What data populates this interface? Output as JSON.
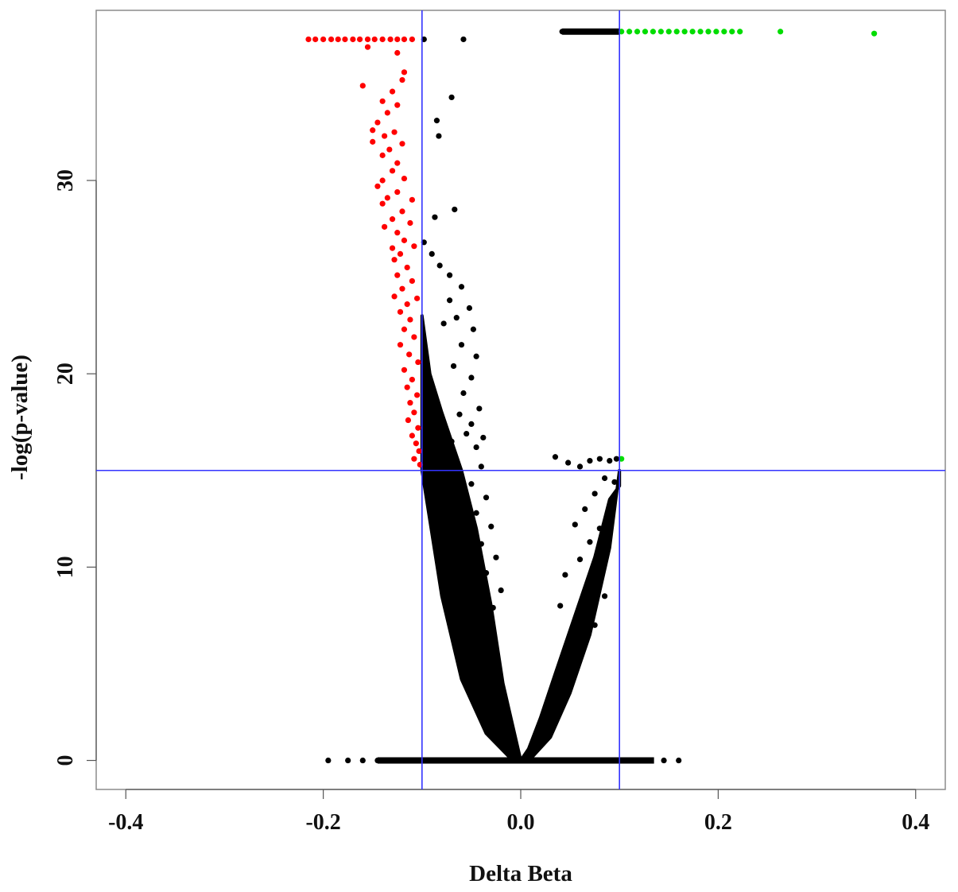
{
  "chart_data": {
    "type": "scatter",
    "title": "",
    "xlabel": "Delta Beta",
    "ylabel": "-log(p-value)",
    "xlim": [
      -0.43,
      0.43
    ],
    "ylim": [
      -1.5,
      38.8
    ],
    "x_ticks": [
      {
        "value": -0.4,
        "label": "-0.4"
      },
      {
        "value": -0.2,
        "label": "-0.2"
      },
      {
        "value": 0.0,
        "label": "0.0"
      },
      {
        "value": 0.2,
        "label": "0.2"
      },
      {
        "value": 0.4,
        "label": "0.4"
      }
    ],
    "y_ticks": [
      {
        "value": 0,
        "label": "0"
      },
      {
        "value": 10,
        "label": "10"
      },
      {
        "value": 20,
        "label": "20"
      },
      {
        "value": 30,
        "label": "30"
      }
    ],
    "grid": false,
    "legend": "none",
    "threshold_lines": {
      "vertical": [
        -0.1,
        0.1
      ],
      "horizontal": [
        15.0
      ],
      "color": "#3333ff"
    },
    "series": [
      {
        "color": "#ff0000",
        "points": [
          [
            -0.215,
            37.3
          ],
          [
            -0.208,
            37.3
          ],
          [
            -0.2,
            37.3
          ],
          [
            -0.192,
            37.3
          ],
          [
            -0.185,
            37.3
          ],
          [
            -0.178,
            37.3
          ],
          [
            -0.17,
            37.3
          ],
          [
            -0.163,
            37.3
          ],
          [
            -0.155,
            37.3
          ],
          [
            -0.148,
            37.3
          ],
          [
            -0.14,
            37.3
          ],
          [
            -0.132,
            37.3
          ],
          [
            -0.125,
            37.3
          ],
          [
            -0.118,
            37.3
          ],
          [
            -0.11,
            37.3
          ],
          [
            -0.155,
            36.9
          ],
          [
            -0.125,
            36.6
          ],
          [
            -0.118,
            35.6
          ],
          [
            -0.12,
            35.2
          ],
          [
            -0.16,
            34.9
          ],
          [
            -0.13,
            34.6
          ],
          [
            -0.14,
            34.1
          ],
          [
            -0.125,
            33.9
          ],
          [
            -0.135,
            33.5
          ],
          [
            -0.145,
            33.0
          ],
          [
            -0.15,
            32.6
          ],
          [
            -0.138,
            32.3
          ],
          [
            -0.15,
            32.0
          ],
          [
            -0.128,
            32.5
          ],
          [
            -0.133,
            31.6
          ],
          [
            -0.14,
            31.3
          ],
          [
            -0.12,
            31.9
          ],
          [
            -0.125,
            30.9
          ],
          [
            -0.13,
            30.5
          ],
          [
            -0.14,
            30.0
          ],
          [
            -0.145,
            29.7
          ],
          [
            -0.118,
            30.1
          ],
          [
            -0.125,
            29.4
          ],
          [
            -0.135,
            29.1
          ],
          [
            -0.14,
            28.8
          ],
          [
            -0.11,
            29.0
          ],
          [
            -0.12,
            28.4
          ],
          [
            -0.13,
            28.0
          ],
          [
            -0.138,
            27.6
          ],
          [
            -0.112,
            27.8
          ],
          [
            -0.125,
            27.3
          ],
          [
            -0.118,
            26.9
          ],
          [
            -0.13,
            26.5
          ],
          [
            -0.122,
            26.2
          ],
          [
            -0.108,
            26.6
          ],
          [
            -0.128,
            25.9
          ],
          [
            -0.115,
            25.5
          ],
          [
            -0.125,
            25.1
          ],
          [
            -0.11,
            24.8
          ],
          [
            -0.12,
            24.4
          ],
          [
            -0.128,
            24.0
          ],
          [
            -0.115,
            23.6
          ],
          [
            -0.105,
            23.9
          ],
          [
            -0.122,
            23.2
          ],
          [
            -0.112,
            22.8
          ],
          [
            -0.118,
            22.3
          ],
          [
            -0.108,
            21.9
          ],
          [
            -0.122,
            21.5
          ],
          [
            -0.113,
            21.0
          ],
          [
            -0.104,
            20.6
          ],
          [
            -0.118,
            20.2
          ],
          [
            -0.11,
            19.7
          ],
          [
            -0.115,
            19.3
          ],
          [
            -0.105,
            18.9
          ],
          [
            -0.112,
            18.5
          ],
          [
            -0.108,
            18.0
          ],
          [
            -0.114,
            17.6
          ],
          [
            -0.104,
            17.2
          ],
          [
            -0.11,
            16.8
          ],
          [
            -0.106,
            16.4
          ],
          [
            -0.103,
            16.0
          ],
          [
            -0.108,
            15.6
          ],
          [
            -0.102,
            15.3
          ]
        ]
      },
      {
        "color": "#00dd00",
        "points": [
          [
            0.102,
            37.7
          ],
          [
            0.11,
            37.7
          ],
          [
            0.118,
            37.7
          ],
          [
            0.126,
            37.7
          ],
          [
            0.134,
            37.7
          ],
          [
            0.142,
            37.7
          ],
          [
            0.15,
            37.7
          ],
          [
            0.158,
            37.7
          ],
          [
            0.166,
            37.7
          ],
          [
            0.174,
            37.7
          ],
          [
            0.182,
            37.7
          ],
          [
            0.19,
            37.7
          ],
          [
            0.198,
            37.7
          ],
          [
            0.206,
            37.7
          ],
          [
            0.214,
            37.7
          ],
          [
            0.222,
            37.7
          ],
          [
            0.263,
            37.7
          ],
          [
            0.358,
            37.6
          ],
          [
            0.102,
            15.6
          ]
        ]
      },
      {
        "color": "#000000",
        "points": [
          [
            -0.195,
            0.0
          ],
          [
            -0.175,
            0.0
          ],
          [
            -0.16,
            0.0
          ],
          [
            -0.145,
            0.0
          ],
          [
            -0.13,
            0.0
          ],
          [
            -0.11,
            0.0
          ],
          [
            -0.09,
            0.0
          ],
          [
            -0.07,
            0.0
          ],
          [
            -0.05,
            0.0
          ],
          [
            -0.03,
            0.0
          ],
          [
            -0.01,
            0.0
          ],
          [
            0.01,
            0.0
          ],
          [
            0.03,
            0.0
          ],
          [
            0.05,
            0.0
          ],
          [
            0.07,
            0.0
          ],
          [
            0.09,
            0.0
          ],
          [
            0.11,
            0.0
          ],
          [
            0.13,
            0.0
          ],
          [
            0.145,
            0.0
          ],
          [
            0.16,
            0.0
          ],
          [
            -0.098,
            37.3
          ],
          [
            -0.058,
            37.3
          ],
          [
            0.042,
            37.7
          ],
          [
            0.052,
            37.7
          ],
          [
            0.062,
            37.7
          ],
          [
            0.072,
            37.7
          ],
          [
            0.082,
            37.7
          ],
          [
            0.092,
            37.7
          ],
          [
            -0.07,
            34.3
          ],
          [
            -0.085,
            33.1
          ],
          [
            -0.083,
            32.3
          ],
          [
            -0.087,
            28.1
          ],
          [
            -0.067,
            28.5
          ],
          [
            -0.098,
            26.8
          ],
          [
            -0.09,
            26.2
          ],
          [
            -0.082,
            25.6
          ],
          [
            -0.072,
            25.1
          ],
          [
            -0.06,
            24.5
          ],
          [
            -0.072,
            23.8
          ],
          [
            -0.052,
            23.4
          ],
          [
            -0.065,
            22.9
          ],
          [
            -0.048,
            22.3
          ],
          [
            -0.078,
            22.6
          ],
          [
            -0.06,
            21.5
          ],
          [
            -0.045,
            20.9
          ],
          [
            -0.068,
            20.4
          ],
          [
            -0.05,
            19.8
          ],
          [
            -0.058,
            19.0
          ],
          [
            -0.042,
            18.2
          ],
          [
            -0.062,
            17.9
          ],
          [
            -0.05,
            17.4
          ],
          [
            -0.038,
            16.7
          ],
          [
            -0.055,
            16.9
          ],
          [
            -0.045,
            16.2
          ],
          [
            -0.07,
            16.5
          ],
          [
            -0.065,
            15.4
          ],
          [
            -0.04,
            15.2
          ],
          [
            -0.05,
            14.3
          ],
          [
            -0.035,
            13.6
          ],
          [
            -0.045,
            12.8
          ],
          [
            -0.03,
            12.1
          ],
          [
            -0.04,
            11.2
          ],
          [
            -0.025,
            10.5
          ],
          [
            -0.035,
            9.7
          ],
          [
            -0.02,
            8.8
          ],
          [
            -0.028,
            7.9
          ],
          [
            0.035,
            15.7
          ],
          [
            0.048,
            15.4
          ],
          [
            0.06,
            15.2
          ],
          [
            0.07,
            15.5
          ],
          [
            0.08,
            15.6
          ],
          [
            0.09,
            15.5
          ],
          [
            0.097,
            15.6
          ],
          [
            0.085,
            14.6
          ],
          [
            0.095,
            14.4
          ],
          [
            0.075,
            13.8
          ],
          [
            0.065,
            13.0
          ],
          [
            0.092,
            12.8
          ],
          [
            0.08,
            12.0
          ],
          [
            0.055,
            12.2
          ],
          [
            0.07,
            11.3
          ],
          [
            0.088,
            11.0
          ],
          [
            0.06,
            10.4
          ],
          [
            0.078,
            9.8
          ],
          [
            0.045,
            9.6
          ],
          [
            0.068,
            8.9
          ],
          [
            0.085,
            8.5
          ],
          [
            0.04,
            8.0
          ],
          [
            0.058,
            7.6
          ],
          [
            0.075,
            7.0
          ]
        ]
      }
    ]
  }
}
